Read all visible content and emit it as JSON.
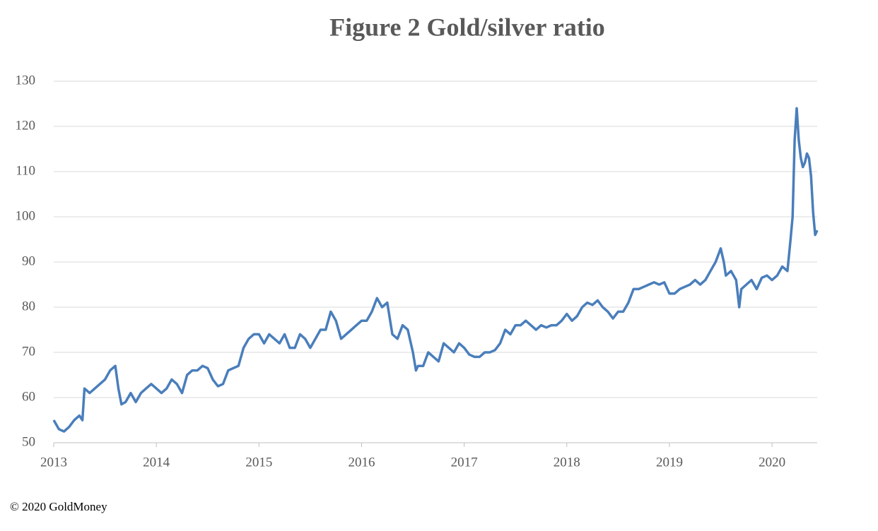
{
  "chart_data": {
    "type": "line",
    "title": "Figure 2 Gold/silver ratio",
    "footnote": "© 2020 GoldMoney",
    "xlim": [
      2013,
      2020.44
    ],
    "xticks": [
      2013,
      2014,
      2015,
      2016,
      2017,
      2018,
      2019,
      2020
    ],
    "ylim": [
      50,
      130
    ],
    "yticks": [
      50,
      60,
      70,
      80,
      90,
      100,
      110,
      120,
      130
    ],
    "grid": true,
    "series": [
      {
        "name": "Gold/silver ratio",
        "color": "#4a7ebb",
        "x": [
          2013.0,
          2013.05,
          2013.1,
          2013.15,
          2013.2,
          2013.25,
          2013.28,
          2013.3,
          2013.35,
          2013.4,
          2013.45,
          2013.5,
          2013.55,
          2013.6,
          2013.63,
          2013.66,
          2013.7,
          2013.75,
          2013.8,
          2013.85,
          2013.9,
          2013.95,
          2014.0,
          2014.05,
          2014.1,
          2014.15,
          2014.2,
          2014.25,
          2014.3,
          2014.35,
          2014.4,
          2014.45,
          2014.5,
          2014.55,
          2014.6,
          2014.65,
          2014.7,
          2014.75,
          2014.8,
          2014.85,
          2014.9,
          2014.95,
          2015.0,
          2015.05,
          2015.1,
          2015.15,
          2015.2,
          2015.25,
          2015.3,
          2015.35,
          2015.4,
          2015.45,
          2015.5,
          2015.55,
          2015.6,
          2015.65,
          2015.7,
          2015.75,
          2015.8,
          2015.85,
          2015.9,
          2015.95,
          2016.0,
          2016.05,
          2016.1,
          2016.15,
          2016.2,
          2016.25,
          2016.3,
          2016.35,
          2016.4,
          2016.45,
          2016.5,
          2016.53,
          2016.55,
          2016.6,
          2016.65,
          2016.7,
          2016.75,
          2016.8,
          2016.85,
          2016.9,
          2016.95,
          2017.0,
          2017.05,
          2017.1,
          2017.15,
          2017.2,
          2017.25,
          2017.3,
          2017.35,
          2017.4,
          2017.45,
          2017.5,
          2017.55,
          2017.6,
          2017.65,
          2017.7,
          2017.75,
          2017.8,
          2017.85,
          2017.9,
          2017.95,
          2018.0,
          2018.05,
          2018.1,
          2018.15,
          2018.2,
          2018.25,
          2018.3,
          2018.35,
          2018.4,
          2018.45,
          2018.5,
          2018.55,
          2018.6,
          2018.65,
          2018.7,
          2018.75,
          2018.8,
          2018.85,
          2018.9,
          2018.95,
          2019.0,
          2019.05,
          2019.1,
          2019.15,
          2019.2,
          2019.25,
          2019.3,
          2019.35,
          2019.4,
          2019.45,
          2019.5,
          2019.53,
          2019.55,
          2019.6,
          2019.65,
          2019.68,
          2019.7,
          2019.75,
          2019.8,
          2019.85,
          2019.9,
          2019.95,
          2020.0,
          2020.05,
          2020.1,
          2020.15,
          2020.18,
          2020.2,
          2020.22,
          2020.24,
          2020.26,
          2020.28,
          2020.3,
          2020.32,
          2020.34,
          2020.36,
          2020.38,
          2020.4,
          2020.42,
          2020.44
        ],
        "values": [
          55,
          53,
          52.5,
          53.5,
          55,
          56,
          55,
          62,
          61,
          62,
          63,
          64,
          66,
          67,
          62,
          58.5,
          59,
          61,
          59,
          61,
          62,
          63,
          62,
          61,
          62,
          64,
          63,
          61,
          65,
          66,
          66,
          67,
          66.5,
          64,
          62.5,
          63,
          66,
          66.5,
          67,
          71,
          73,
          74,
          74,
          72,
          74,
          73,
          72,
          74,
          71,
          71,
          74,
          73,
          71,
          73,
          75,
          75,
          79,
          77,
          73,
          74,
          75,
          76,
          77,
          77,
          79,
          82,
          80,
          81,
          74,
          73,
          76,
          75,
          70,
          66,
          67,
          67,
          70,
          69,
          68,
          72,
          71,
          70,
          72,
          71,
          69.5,
          69,
          69,
          70,
          70,
          70.5,
          72,
          75,
          74,
          76,
          76,
          77,
          76,
          75,
          76,
          75.5,
          76,
          76,
          77,
          78.5,
          77,
          78,
          80,
          81,
          80.5,
          81.5,
          80,
          79,
          77.5,
          79,
          79,
          81,
          84,
          84,
          84.5,
          85,
          85.5,
          85,
          85.5,
          83,
          83,
          84,
          84.5,
          85,
          86,
          85,
          86,
          88,
          90,
          93,
          90,
          87,
          88,
          86,
          80,
          84,
          85,
          86,
          84,
          86.5,
          87,
          86,
          87,
          89,
          88,
          95,
          100,
          117,
          124,
          117,
          113,
          111,
          112,
          114,
          113,
          109,
          101,
          96,
          97
        ]
      }
    ]
  }
}
